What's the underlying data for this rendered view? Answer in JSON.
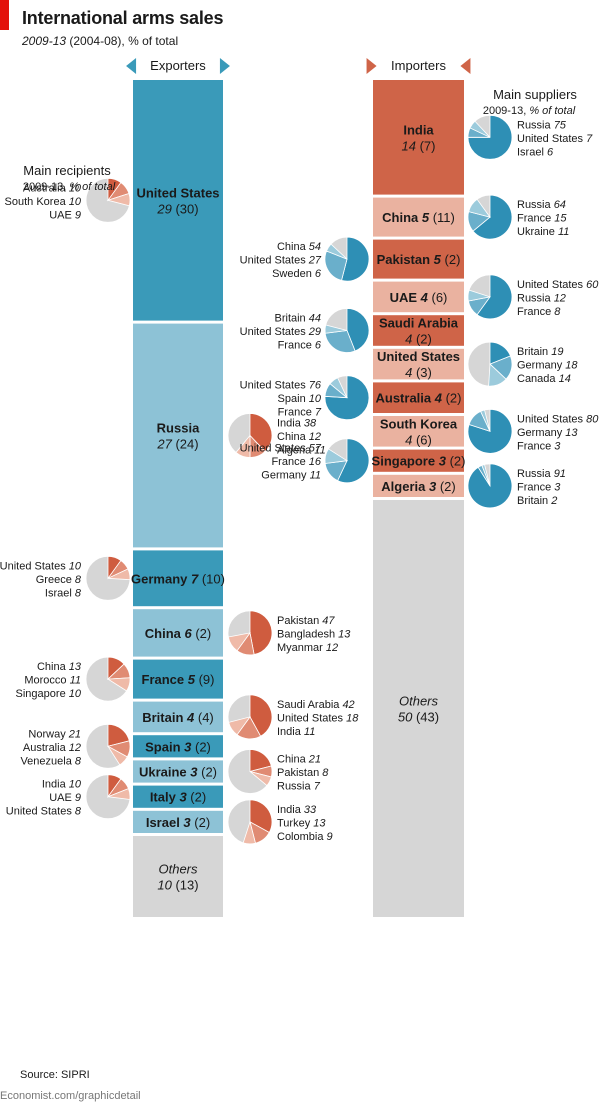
{
  "title": "International arms sales",
  "subtitle_italic": "2009-13",
  "subtitle_rest": " (2004-08), % of total",
  "source": "Source: SIPRI",
  "credit": "Economist.com/graphicdetail",
  "colors": {
    "accent_red": "#e3120b",
    "exporter_dark": "#3a9ab9",
    "exporter_light": "#8dc2d6",
    "importer_dark": "#cf6448",
    "importer_light": "#eab2a0",
    "others": "#d6d6d6",
    "pie_blue_main": "#2e8fb5",
    "pie_blue_2": "#6aafcb",
    "pie_blue_3": "#9ccbdc",
    "pie_red_main": "#cf5c3f",
    "pie_red_2": "#e08b73",
    "pie_red_3": "#efbaa8",
    "pie_rest": "#d6d6d6"
  },
  "chart_data": {
    "type": "stacked-bar-with-pies",
    "unit": "% of total",
    "period": "2009-13 (2004-08)",
    "exporters": {
      "header": "Exporters",
      "pies_title": "Main recipients",
      "pies_subtitle_period": "2009-13, ",
      "pies_subtitle_italic": "% of total",
      "items": [
        {
          "name": "United States",
          "share": 29,
          "share_prev": 30,
          "recipients": [
            {
              "name": "Australia",
              "value": 10
            },
            {
              "name": "South Korea",
              "value": 10
            },
            {
              "name": "UAE",
              "value": 9
            }
          ]
        },
        {
          "name": "Russia",
          "share": 27,
          "share_prev": 24,
          "recipients": [
            {
              "name": "India",
              "value": 38
            },
            {
              "name": "China",
              "value": 12
            },
            {
              "name": "Algeria",
              "value": 11
            }
          ]
        },
        {
          "name": "Germany",
          "share": 7,
          "share_prev": 10,
          "recipients": [
            {
              "name": "United States",
              "value": 10
            },
            {
              "name": "Greece",
              "value": 8
            },
            {
              "name": "Israel",
              "value": 8
            }
          ]
        },
        {
          "name": "China",
          "share": 6,
          "share_prev": 2,
          "recipients": [
            {
              "name": "Pakistan",
              "value": 47
            },
            {
              "name": "Bangladesh",
              "value": 13
            },
            {
              "name": "Myanmar",
              "value": 12
            }
          ]
        },
        {
          "name": "France",
          "share": 5,
          "share_prev": 9,
          "recipients": [
            {
              "name": "China",
              "value": 13
            },
            {
              "name": "Morocco",
              "value": 11
            },
            {
              "name": "Singapore",
              "value": 10
            }
          ]
        },
        {
          "name": "Britain",
          "share": 4,
          "share_prev": 4,
          "recipients": [
            {
              "name": "Saudi Arabia",
              "value": 42
            },
            {
              "name": "United States",
              "value": 18
            },
            {
              "name": "India",
              "value": 11
            }
          ]
        },
        {
          "name": "Spain",
          "share": 3,
          "share_prev": 2,
          "recipients": [
            {
              "name": "Norway",
              "value": 21
            },
            {
              "name": "Australia",
              "value": 12
            },
            {
              "name": "Venezuela",
              "value": 8
            }
          ]
        },
        {
          "name": "Ukraine",
          "share": 3,
          "share_prev": 2,
          "recipients": [
            {
              "name": "China",
              "value": 21
            },
            {
              "name": "Pakistan",
              "value": 8
            },
            {
              "name": "Russia",
              "value": 7
            }
          ]
        },
        {
          "name": "Italy",
          "share": 3,
          "share_prev": 2,
          "recipients": [
            {
              "name": "India",
              "value": 10
            },
            {
              "name": "UAE",
              "value": 9
            },
            {
              "name": "United States",
              "value": 8
            }
          ]
        },
        {
          "name": "Israel",
          "share": 3,
          "share_prev": 2,
          "recipients": [
            {
              "name": "India",
              "value": 33
            },
            {
              "name": "Turkey",
              "value": 13
            },
            {
              "name": "Colombia",
              "value": 9
            }
          ]
        },
        {
          "name": "Others",
          "share": 10,
          "share_prev": 13,
          "recipients": []
        }
      ]
    },
    "importers": {
      "header": "Importers",
      "pies_title": "Main suppliers",
      "pies_subtitle_period": "2009-13, ",
      "pies_subtitle_italic": "% of total",
      "items": [
        {
          "name": "India",
          "share": 14,
          "share_prev": 7,
          "suppliers": [
            {
              "name": "Russia",
              "value": 75
            },
            {
              "name": "United States",
              "value": 7
            },
            {
              "name": "Israel",
              "value": 6
            }
          ]
        },
        {
          "name": "China",
          "share": 5,
          "share_prev": 11,
          "suppliers": [
            {
              "name": "Russia",
              "value": 64
            },
            {
              "name": "France",
              "value": 15
            },
            {
              "name": "Ukraine",
              "value": 11
            }
          ]
        },
        {
          "name": "Pakistan",
          "share": 5,
          "share_prev": 2,
          "suppliers": [
            {
              "name": "China",
              "value": 54
            },
            {
              "name": "United States",
              "value": 27
            },
            {
              "name": "Sweden",
              "value": 6
            }
          ]
        },
        {
          "name": "UAE",
          "share": 4,
          "share_prev": 6,
          "suppliers": [
            {
              "name": "United States",
              "value": 60
            },
            {
              "name": "Russia",
              "value": 12
            },
            {
              "name": "France",
              "value": 8
            }
          ]
        },
        {
          "name": "Saudi Arabia",
          "share": 4,
          "share_prev": 2,
          "suppliers": [
            {
              "name": "Britain",
              "value": 44
            },
            {
              "name": "United States",
              "value": 29
            },
            {
              "name": "France",
              "value": 6
            }
          ]
        },
        {
          "name": "United States",
          "share": 4,
          "share_prev": 3,
          "suppliers": [
            {
              "name": "Britain",
              "value": 19
            },
            {
              "name": "Germany",
              "value": 18
            },
            {
              "name": "Canada",
              "value": 14
            }
          ]
        },
        {
          "name": "Australia",
          "share": 4,
          "share_prev": 2,
          "suppliers": [
            {
              "name": "United States",
              "value": 76
            },
            {
              "name": "Spain",
              "value": 10
            },
            {
              "name": "France",
              "value": 7
            }
          ]
        },
        {
          "name": "South Korea",
          "share": 4,
          "share_prev": 6,
          "suppliers": [
            {
              "name": "United States",
              "value": 80
            },
            {
              "name": "Germany",
              "value": 13
            },
            {
              "name": "France",
              "value": 3
            }
          ]
        },
        {
          "name": "Singapore",
          "share": 3,
          "share_prev": 2,
          "suppliers": [
            {
              "name": "United States",
              "value": 57
            },
            {
              "name": "France",
              "value": 16
            },
            {
              "name": "Germany",
              "value": 11
            }
          ]
        },
        {
          "name": "Algeria",
          "share": 3,
          "share_prev": 2,
          "suppliers": [
            {
              "name": "Russia",
              "value": 91
            },
            {
              "name": "France",
              "value": 3
            },
            {
              "name": "Britain",
              "value": 2
            }
          ]
        },
        {
          "name": "Others",
          "share": 50,
          "share_prev": 43,
          "suppliers": []
        }
      ]
    }
  }
}
